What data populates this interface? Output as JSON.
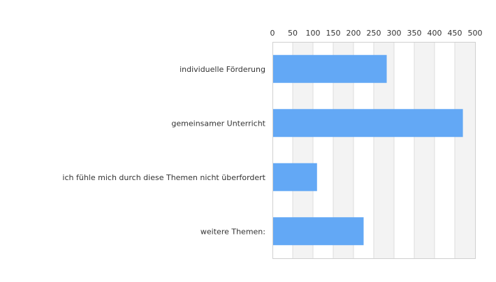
{
  "chart_data": {
    "type": "bar",
    "orientation": "horizontal",
    "categories": [
      "individuelle Förderung",
      "gemeinsamer Unterricht",
      "ich fühle mich durch diese Themen nicht überfordert",
      "weitere Themen:"
    ],
    "values": [
      282,
      470,
      110,
      225
    ],
    "xlim": [
      0,
      500
    ],
    "xticks": [
      0,
      50,
      100,
      150,
      200,
      250,
      300,
      350,
      400,
      450,
      500
    ],
    "axis_position": "top",
    "grid": true,
    "legend": "none",
    "colors": {
      "bar": "#63a8f5",
      "band": "#f3f3f3",
      "gridline": "#dddddd",
      "frame": "#d0d0d0",
      "text": "#333333"
    }
  }
}
